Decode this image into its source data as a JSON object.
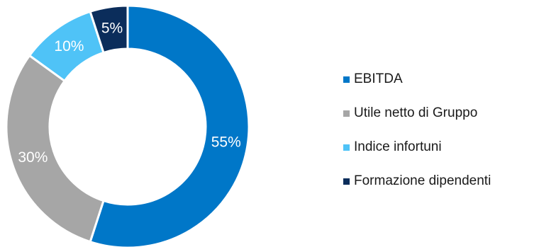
{
  "chart_data": {
    "type": "pie",
    "variant": "donut",
    "categories": [
      "EBITDA",
      "Utile netto di Gruppo",
      "Indice infortuni",
      "Formazione dipendenti"
    ],
    "values": [
      55,
      30,
      10,
      5
    ],
    "value_labels": [
      "55%",
      "30%",
      "10%",
      "5%"
    ],
    "colors": [
      "#0077c8",
      "#a6a6a6",
      "#4fc3f7",
      "#0b2d5b"
    ],
    "start_angle": "12 o'clock",
    "direction": "clockwise",
    "legend_position": "right"
  },
  "legend": {
    "items": [
      {
        "label": "EBITDA",
        "color": "#0077c8"
      },
      {
        "label": "Utile netto di Gruppo",
        "color": "#a6a6a6"
      },
      {
        "label": "Indice infortuni",
        "color": "#4fc3f7"
      },
      {
        "label": "Formazione dipendenti",
        "color": "#0b2d5b"
      }
    ]
  }
}
